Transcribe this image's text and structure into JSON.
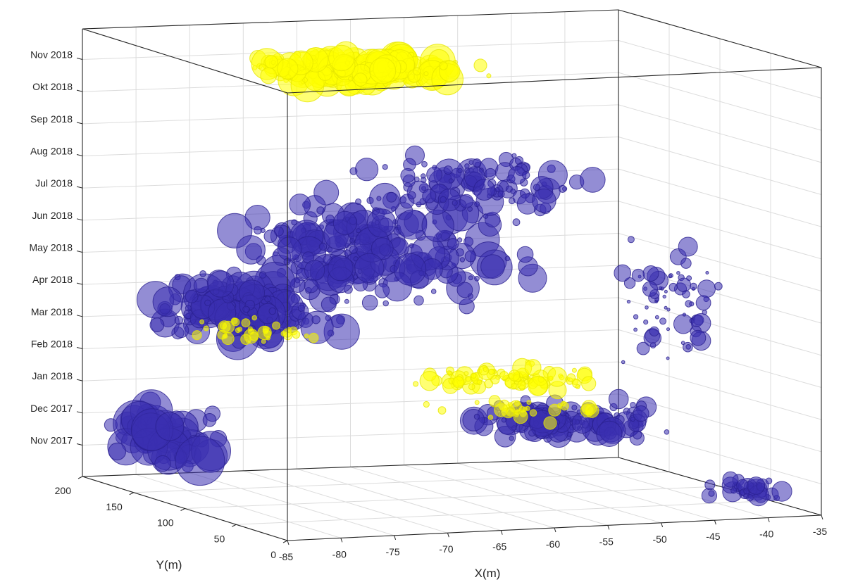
{
  "chart_data": {
    "type": "scatter",
    "projection": "3d",
    "title": "",
    "xlabel": "X(m)",
    "ylabel": "Y(m)",
    "zlabel": "",
    "xlim": [
      -85,
      -35
    ],
    "ylim": [
      0,
      200
    ],
    "zlim": [
      "Oct 2017",
      "Nov 2018"
    ],
    "x_ticks": [
      "-85",
      "-80",
      "-75",
      "-70",
      "-65",
      "-60",
      "-55",
      "-50",
      "-45",
      "-40",
      "-35"
    ],
    "y_ticks": [
      "0",
      "50",
      "100",
      "150",
      "200"
    ],
    "z_ticks": [
      "Nov 2017",
      "Dec 2017",
      "Jan 2018",
      "Feb 2018",
      "Mar 2018",
      "Apr 2018",
      "May 2018",
      "Jun 2018",
      "Jul 2018",
      "Aug 2018",
      "Sep 2018",
      "Okt 2018",
      "Nov 2018"
    ],
    "grid": true,
    "marker_alpha": 0.55,
    "series": [
      {
        "color": "#3a2fb0",
        "description_of_points": "events with time from Nov 2017 to Oct 2018"
      },
      {
        "color": "#ffff00",
        "description_of_points": "events concentrated around Mar 2018, Jan-Feb 2018 and Oct-Nov 2018"
      }
    ]
  }
}
